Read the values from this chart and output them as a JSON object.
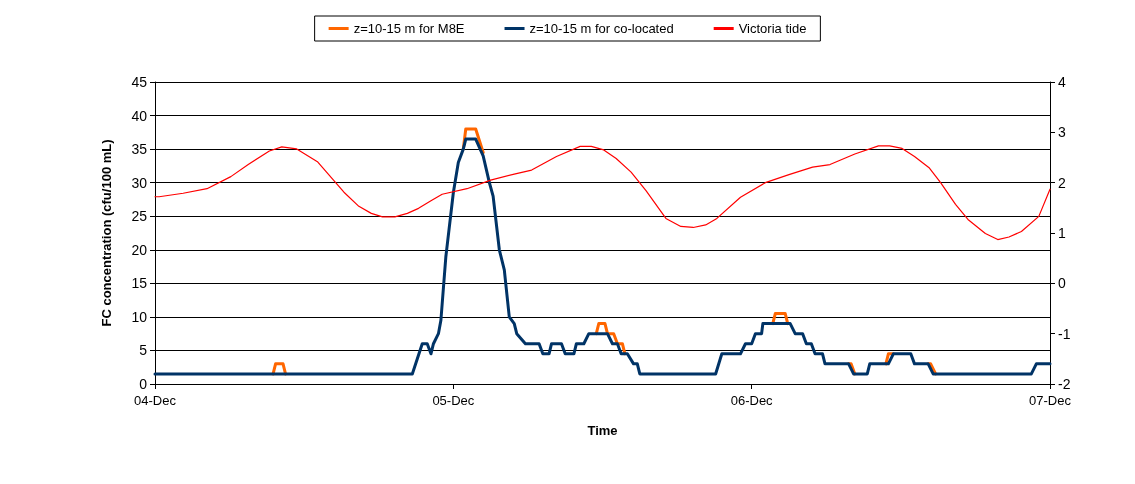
{
  "chart_data": {
    "type": "line",
    "xlabel": "Time",
    "ylabel": "FC concentration (cfu/100 mL)",
    "xlim": [
      "--12-04",
      "--12-07"
    ],
    "xticks": [
      {
        "value": "--12-04",
        "label": "04-Dec"
      },
      {
        "value": "--12-05",
        "label": "05-Dec"
      },
      {
        "value": "--12-06",
        "label": "06-Dec"
      },
      {
        "value": "--12-07",
        "label": "07-Dec"
      }
    ],
    "ylim": [
      0,
      45
    ],
    "yticks": [
      0,
      5,
      10,
      15,
      20,
      25,
      30,
      35,
      40,
      45
    ],
    "y2lim": [
      -2,
      4
    ],
    "y2ticks": [
      -2,
      -1,
      0,
      1,
      2,
      3,
      4
    ],
    "grid": "y",
    "legend": "top",
    "marker": "none",
    "line_style": "solid",
    "series": [
      {
        "name": "z=10-15 m for M8E",
        "color": "#ff6600",
        "x": [
          "--12-04T09:30",
          "--12-04T09:42",
          "--12-04T10:18",
          "--12-04T10:30",
          "--12-04T18:00",
          "--12-05T00:48",
          "--12-05T01:00",
          "--12-05T01:48",
          "--12-05T02:24",
          "--12-05T06:00",
          "--12-05T11:30",
          "--12-05T11:42",
          "--12-05T12:12",
          "--12-05T12:24",
          "--12-05T12:54",
          "--12-05T13:12",
          "--12-05T13:36",
          "--12-05T13:48",
          "--12-05T18:00",
          "--12-06T01:42",
          "--12-06T01:54",
          "--12-06T02:42",
          "--12-06T02:54",
          "--12-06T06:00",
          "--12-06T07:48",
          "--12-06T08:00",
          "--12-06T08:18",
          "--12-06T09:00",
          "--12-06T10:48",
          "--12-06T11:00",
          "--12-06T11:24",
          "--12-06T12:00",
          "--12-06T14:12",
          "--12-06T14:24",
          "--12-06T14:48"
        ],
        "values": [
          1.5,
          3,
          3,
          1.5,
          null,
          35,
          38,
          38,
          34.5,
          null,
          7.5,
          9,
          9,
          7.5,
          7.5,
          6,
          6,
          4.5,
          null,
          9,
          10.5,
          10.5,
          9,
          null,
          3,
          3,
          1.5,
          null,
          3,
          4.5,
          4.5,
          null,
          3,
          3,
          1.5
        ]
      },
      {
        "name": "z=10-15 m for co-located",
        "color": "#003366",
        "x": [
          "--12-04T00:00",
          "--12-04T20:42",
          "--12-04T21:30",
          "--12-04T21:54",
          "--12-04T22:12",
          "--12-04T22:24",
          "--12-04T22:48",
          "--12-04T23:00",
          "--12-04T23:24",
          "--12-05T00:00",
          "--12-05T00:24",
          "--12-05T00:48",
          "--12-05T01:00",
          "--12-05T01:48",
          "--12-05T02:24",
          "--12-05T02:54",
          "--12-05T03:12",
          "--12-05T03:42",
          "--12-05T04:06",
          "--12-05T04:30",
          "--12-05T04:54",
          "--12-05T05:06",
          "--12-05T05:48",
          "--12-05T06:54",
          "--12-05T07:12",
          "--12-05T07:42",
          "--12-05T07:54",
          "--12-05T08:42",
          "--12-05T09:00",
          "--12-05T09:42",
          "--12-05T09:54",
          "--12-05T10:30",
          "--12-05T10:54",
          "--12-05T12:24",
          "--12-05T12:48",
          "--12-05T13:12",
          "--12-05T13:30",
          "--12-05T14:00",
          "--12-05T14:30",
          "--12-05T14:48",
          "--12-05T15:00",
          "--12-05T21:06",
          "--12-05T21:36",
          "--12-05T23:06",
          "--12-05T23:30",
          "--12-06T00:00",
          "--12-06T00:18",
          "--12-06T00:48",
          "--12-06T00:54",
          "--12-06T03:06",
          "--12-06T03:30",
          "--12-06T04:06",
          "--12-06T04:24",
          "--12-06T04:48",
          "--12-06T05:06",
          "--12-06T05:42",
          "--12-06T05:54",
          "--12-06T07:48",
          "--12-06T08:12",
          "--12-06T09:18",
          "--12-06T09:30",
          "--12-06T11:00",
          "--12-06T11:24",
          "--12-06T12:48",
          "--12-06T13:06",
          "--12-06T14:12",
          "--12-06T14:36",
          "--12-06T22:30",
          "--12-06T22:54",
          "--12-07T00:00"
        ],
        "values": [
          1.5,
          1.5,
          6,
          6,
          4.5,
          6,
          7.5,
          9.5,
          19,
          28.5,
          33,
          35,
          36.5,
          36.5,
          34,
          30,
          28,
          20,
          17,
          10,
          9,
          7.5,
          6,
          6,
          4.5,
          4.5,
          6,
          6,
          4.5,
          4.5,
          6,
          6,
          7.5,
          7.5,
          6,
          6,
          4.5,
          4.5,
          3,
          3,
          1.5,
          1.5,
          4.5,
          4.5,
          6,
          6,
          7.5,
          7.5,
          9,
          9,
          7.5,
          7.5,
          6,
          6,
          4.5,
          4.5,
          3,
          3,
          1.5,
          1.5,
          3,
          3,
          4.5,
          4.5,
          3,
          3,
          1.5,
          1.5,
          3,
          3
        ]
      },
      {
        "name": "Victoria tide",
        "color": "#ff0000",
        "axis": "y2",
        "x": [
          "--12-04T00:00",
          "--12-04T00:20",
          "--12-04T02:16",
          "--12-04T04:11",
          "--12-04T06:06",
          "--12-04T07:30",
          "--12-04T09:12",
          "--12-04T10:12",
          "--12-04T11:24",
          "--12-04T13:06",
          "--12-04T15:12",
          "--12-04T16:24",
          "--12-04T17:24",
          "--12-04T18:18",
          "--12-04T19:18",
          "--12-04T20:18",
          "--12-04T21:12",
          "--12-04T22:12",
          "--12-04T23:06",
          "--12-05T01:06",
          "--12-05T03:00",
          "--12-05T04:54",
          "--12-05T06:18",
          "--12-05T08:18",
          "--12-05T10:12",
          "--12-05T11:06",
          "--12-05T12:06",
          "--12-05T13:06",
          "--12-05T14:18",
          "--12-05T15:30",
          "--12-05T17:06",
          "--12-05T18:18",
          "--12-05T19:18",
          "--12-05T20:18",
          "--12-05T21:12",
          "--12-05T23:06",
          "--12-06T01:06",
          "--12-06T03:00",
          "--12-06T04:54",
          "--12-06T06:18",
          "--12-06T08:18",
          "--12-06T10:12",
          "--12-06T11:06",
          "--12-06T12:06",
          "--12-06T13:06",
          "--12-06T14:18",
          "--12-06T15:12",
          "--12-06T16:24",
          "--12-06T17:24",
          "--12-06T18:48",
          "--12-06T19:48",
          "--12-06T20:42",
          "--12-06T21:42",
          "--12-06T23:06",
          "--12-07T00:00"
        ],
        "values": [
          1.72,
          1.72,
          1.79,
          1.88,
          2.12,
          2.36,
          2.63,
          2.71,
          2.67,
          2.41,
          1.81,
          1.53,
          1.39,
          1.32,
          1.32,
          1.39,
          1.49,
          1.64,
          1.77,
          1.88,
          2.05,
          2.17,
          2.25,
          2.52,
          2.72,
          2.72,
          2.65,
          2.48,
          2.21,
          1.84,
          1.29,
          1.13,
          1.11,
          1.16,
          1.29,
          1.71,
          2.0,
          2.16,
          2.31,
          2.36,
          2.57,
          2.73,
          2.73,
          2.68,
          2.52,
          2.29,
          2.0,
          1.57,
          1.27,
          0.99,
          0.87,
          0.92,
          1.03,
          1.33,
          1.87
        ]
      }
    ]
  }
}
